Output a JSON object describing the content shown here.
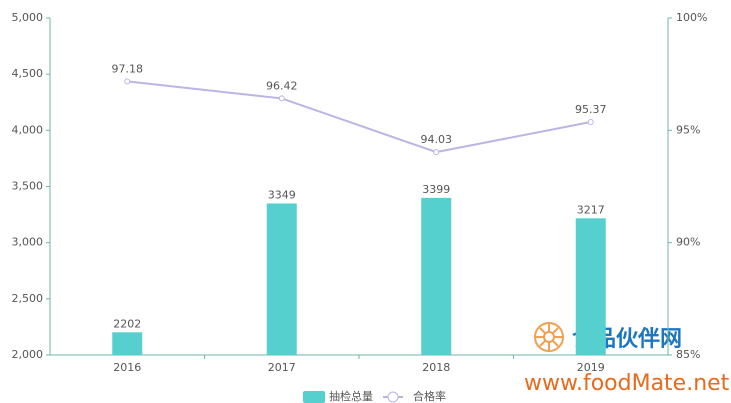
{
  "chart_data": {
    "type": "bar",
    "categories": [
      "2016",
      "2017",
      "2018",
      "2019"
    ],
    "series": [
      {
        "name": "抽检总量",
        "type": "bar",
        "color": "#55d0cf",
        "values": [
          2202,
          3349,
          3399,
          3217
        ]
      },
      {
        "name": "合格率",
        "type": "line",
        "axis": "y2",
        "color": "#bdb3e6",
        "values": [
          97.18,
          96.42,
          94.03,
          95.37
        ]
      }
    ],
    "ylim": [
      2000,
      5000
    ],
    "yticks": [
      {
        "value": 2000,
        "label": "2,000"
      },
      {
        "value": 2500,
        "label": "2,500"
      },
      {
        "value": 3000,
        "label": "3,000"
      },
      {
        "value": 3500,
        "label": "3,500"
      },
      {
        "value": 4000,
        "label": "4,000"
      },
      {
        "value": 4500,
        "label": "4,500"
      },
      {
        "value": 5000,
        "label": "5,000"
      }
    ],
    "y2lim": [
      85,
      100
    ],
    "y2ticks": [
      {
        "value": 85,
        "label": "85%"
      },
      {
        "value": 90,
        "label": "90%"
      },
      {
        "value": 95,
        "label": "95%"
      },
      {
        "value": 100,
        "label": "100%"
      }
    ],
    "legend": "bottom",
    "watermark": [
      "食品伙伴网",
      "www.foodMate.net"
    ]
  }
}
